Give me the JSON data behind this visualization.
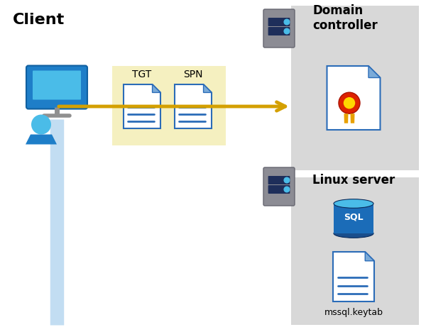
{
  "bg_color": "#ffffff",
  "client_label": "Client",
  "domain_label": "Domain\ncontroller",
  "linux_label": "Linux server",
  "tgt_label": "TGT",
  "spn_label": "SPN",
  "keytab_label": "mssql.keytab",
  "arrow_color": "#D4A000",
  "doc_blue": "#2B6CB8",
  "doc_fill": "#EEF4FF",
  "doc_fold_blue": "#2B5FA0",
  "box_yellow": "#F5F0C0",
  "box_gray": "#D8D8D8",
  "client_line_color": "#B8D8F0",
  "sql_blue_dark": "#1A4E8C",
  "sql_blue_mid": "#1B6CB8",
  "sql_blue_light": "#4ABCE8",
  "cert_red": "#DD2200",
  "cert_gold": "#E8A000",
  "cert_gold2": "#FFD700",
  "server_body": "#8C8C94",
  "server_slot": "#1E2E5A",
  "server_dot1": "#4ABCE8",
  "server_dot2": "#4ABCE8",
  "monitor_blue": "#1E7EC8",
  "monitor_screen": "#4ABCE8",
  "person_blue": "#1E7EC8",
  "person_head": "#4ABCE8"
}
